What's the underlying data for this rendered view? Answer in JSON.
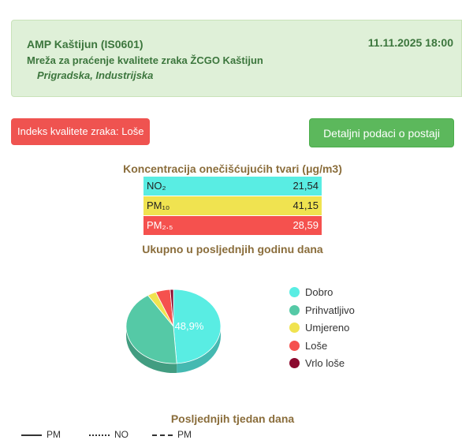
{
  "header": {
    "station_name": "AMP Kaštijun",
    "station_code": "(IS0601)",
    "network": "Mreža za praćenje kvalitete zraka ŽCGO Kaštijun",
    "area": "Prigradska, Industrijska",
    "date": "11.11.2025 18:00"
  },
  "aqi_badge": "Indeks kvalitete zraka: Loše",
  "details_button": "Detaljni podaci o postaji",
  "concentration": {
    "title": "Koncentracija onečišćujućih tvari (μg/m3)",
    "rows": [
      {
        "label": "NO₂",
        "value": "21,54",
        "color": "#59ede3"
      },
      {
        "label": "PM₁₀",
        "value": "41,15",
        "color": "#f0e350"
      },
      {
        "label": "PM₂.₅",
        "value": "28,59",
        "color": "#f5514e"
      }
    ]
  },
  "year_chart": {
    "title": "Ukupno u posljednjih godinu dana",
    "center_label": "48,9%",
    "slices": [
      {
        "name": "Dobro",
        "value": 48.9,
        "color": "#59ede3"
      },
      {
        "name": "Prihvatljivo",
        "value": 42.0,
        "color": "#55c9a6"
      },
      {
        "name": "Umjereno",
        "value": 3.0,
        "color": "#f0e350"
      },
      {
        "name": "Loše",
        "value": 5.0,
        "color": "#f5514e"
      },
      {
        "name": "Vrlo loše",
        "value": 1.1,
        "color": "#8b0a2e"
      }
    ]
  },
  "week_chart": {
    "title": "Posljednjih tjedan dana",
    "legend": [
      "PM",
      "NO",
      "PM"
    ]
  }
}
